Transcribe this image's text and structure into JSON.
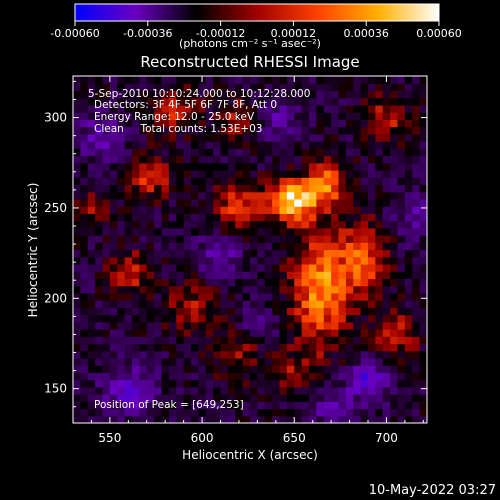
{
  "chart_data": {
    "type": "heatmap",
    "title": "Reconstructed RHESSI Image",
    "xlabel": "Heliocentric X (arcsec)",
    "ylabel": "Heliocentric Y (arcsec)",
    "xlim": [
      530,
      722
    ],
    "ylim": [
      131,
      323
    ],
    "xticks": [
      550,
      600,
      650,
      700
    ],
    "yticks": [
      150,
      200,
      250,
      300
    ],
    "xtick_labels": [
      "550",
      "600",
      "650",
      "700"
    ],
    "ytick_labels": [
      "150",
      "200",
      "250",
      "300"
    ],
    "colorbar": {
      "range": [
        -0.0006,
        0.0006
      ],
      "tick_labels": [
        "-0.00060",
        "-0.00036",
        "-0.00012",
        "0.00012",
        "0.00036",
        "0.00060"
      ],
      "label": "(photons cm⁻² s⁻¹ asec⁻²)",
      "colors": [
        "#0000ff",
        "#6a00c0",
        "#000000",
        "#a00000",
        "#ff4000",
        "#ffb000",
        "#ffffff"
      ]
    },
    "annotations": {
      "time": "5-Sep-2010 10:10:24.000 to 10:12:28.000",
      "detectors": "Detectors: 3F 4F 5F 6F 7F 8F, Att 0",
      "energy": "Energy Range: 12.0 - 25.0 keV",
      "method": "Clean     Total counts: 1.53E+03",
      "peak": "Position of Peak = [649,253]"
    },
    "sources": [
      {
        "x": 649,
        "y": 254,
        "sx": 9,
        "sy": 8,
        "amp": 1.0
      },
      {
        "x": 668,
        "y": 264,
        "sx": 8,
        "sy": 9,
        "amp": 0.7
      },
      {
        "x": 664,
        "y": 206,
        "sx": 11,
        "sy": 22,
        "amp": 0.8
      },
      {
        "x": 688,
        "y": 222,
        "sx": 9,
        "sy": 14,
        "amp": 0.6
      },
      {
        "x": 620,
        "y": 250,
        "sx": 10,
        "sy": 10,
        "amp": 0.55
      },
      {
        "x": 572,
        "y": 268,
        "sx": 8,
        "sy": 8,
        "amp": 0.55
      },
      {
        "x": 585,
        "y": 305,
        "sx": 9,
        "sy": 9,
        "amp": 0.45
      },
      {
        "x": 560,
        "y": 215,
        "sx": 8,
        "sy": 8,
        "amp": 0.5
      },
      {
        "x": 595,
        "y": 195,
        "sx": 10,
        "sy": 10,
        "amp": 0.4
      },
      {
        "x": 620,
        "y": 170,
        "sx": 10,
        "sy": 10,
        "amp": 0.35
      },
      {
        "x": 700,
        "y": 300,
        "sx": 9,
        "sy": 9,
        "amp": 0.4
      },
      {
        "x": 705,
        "y": 180,
        "sx": 9,
        "sy": 9,
        "amp": 0.45
      },
      {
        "x": 650,
        "y": 160,
        "sx": 10,
        "sy": 8,
        "amp": 0.3
      },
      {
        "x": 540,
        "y": 250,
        "sx": 8,
        "sy": 8,
        "amp": 0.3
      },
      {
        "x": 620,
        "y": 300,
        "sx": 8,
        "sy": 8,
        "amp": 0.35
      },
      {
        "x": 690,
        "y": 155,
        "sx": 8,
        "sy": 8,
        "amp": -0.5
      },
      {
        "x": 560,
        "y": 150,
        "sx": 10,
        "sy": 9,
        "amp": -0.45
      },
      {
        "x": 610,
        "y": 225,
        "sx": 9,
        "sy": 9,
        "amp": -0.35
      },
      {
        "x": 545,
        "y": 290,
        "sx": 9,
        "sy": 9,
        "amp": -0.35
      },
      {
        "x": 640,
        "y": 300,
        "sx": 9,
        "sy": 8,
        "amp": -0.3
      },
      {
        "x": 630,
        "y": 185,
        "sx": 8,
        "sy": 8,
        "amp": -0.3
      },
      {
        "x": 715,
        "y": 245,
        "sx": 8,
        "sy": 9,
        "amp": -0.3
      },
      {
        "x": 670,
        "y": 140,
        "sx": 9,
        "sy": 8,
        "amp": -0.3
      }
    ]
  },
  "footer": {
    "timestamp": "10-May-2022 03:27"
  }
}
